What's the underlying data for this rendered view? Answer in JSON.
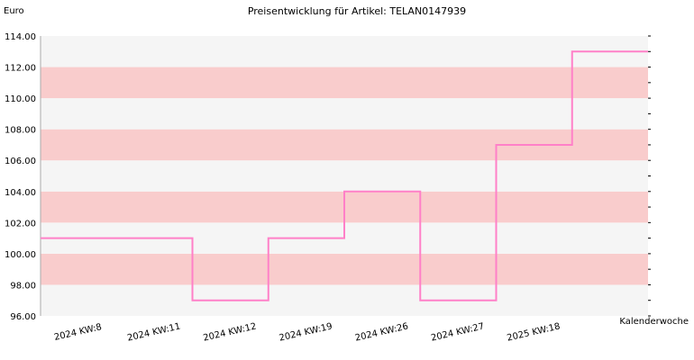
{
  "chart_data": {
    "type": "line",
    "step": true,
    "title": "Preisentwicklung für Artikel: TELAN0147939",
    "ylabel": "Euro",
    "xlabel": "Kalenderwoche",
    "ylim": [
      96,
      114
    ],
    "yticks": [
      "96.00",
      "98.00",
      "100.00",
      "102.00",
      "104.00",
      "106.00",
      "108.00",
      "110.00",
      "112.00",
      "114.00"
    ],
    "categories": [
      "2024 KW:8",
      "2024 KW:11",
      "2024 KW:12",
      "2024 KW:19",
      "2024 KW:26",
      "2024 KW:27",
      "2025 KW:18"
    ],
    "values": [
      101,
      97,
      101,
      104,
      97,
      107,
      113
    ],
    "grid": "horizontal bands",
    "colors": {
      "line": "#ff80c8",
      "band_light": "#f5f5f5",
      "band_dark": "#f9cccc",
      "axis": "#000000"
    }
  }
}
